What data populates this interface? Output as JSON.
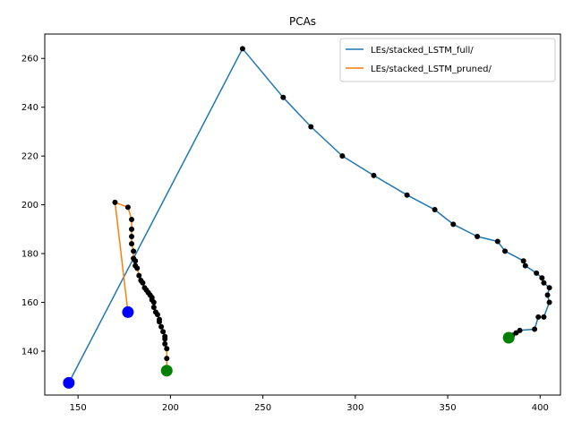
{
  "chart_data": {
    "type": "line",
    "title": "PCAs",
    "xlabel": "",
    "ylabel": "",
    "xlim": [
      132,
      411
    ],
    "ylim": [
      122,
      270
    ],
    "xticks": [
      150,
      200,
      250,
      300,
      350,
      400
    ],
    "yticks": [
      140,
      160,
      180,
      200,
      220,
      240,
      260
    ],
    "grid": false,
    "legend_position": "top-right",
    "start_marker_color": "#0000ff",
    "end_marker_color": "#008000",
    "point_marker_color": "#000000",
    "series": [
      {
        "name": "LEs/stacked_LSTM_full/",
        "color": "#1f77b4",
        "x": [
          145,
          239,
          261,
          276,
          293,
          310,
          328,
          343,
          353,
          366,
          377,
          381,
          391,
          392,
          398,
          401,
          402,
          405,
          404,
          405,
          402,
          399,
          397,
          389,
          387,
          385,
          383
        ],
        "y": [
          127,
          264,
          244,
          232,
          220,
          212,
          204,
          198,
          192,
          187,
          185,
          181,
          177,
          175,
          172,
          170,
          168,
          166,
          163,
          160,
          154,
          154,
          149,
          148.5,
          147.5,
          146.5,
          145.5
        ]
      },
      {
        "name": "LEs/stacked_LSTM_pruned/",
        "color": "#ff7f0e",
        "x": [
          177,
          170,
          177,
          179,
          179,
          179,
          179,
          180,
          180,
          181,
          181,
          182,
          183,
          184,
          185,
          186,
          187,
          188,
          189,
          190,
          190,
          191,
          191,
          192,
          193,
          194,
          194,
          195,
          196,
          197,
          197,
          197,
          198,
          198,
          198
        ],
        "y": [
          156,
          201,
          199,
          194,
          190,
          187,
          184,
          181,
          178,
          177,
          175,
          174,
          171,
          169,
          168,
          166,
          165,
          164,
          163,
          162,
          161,
          160,
          158,
          156,
          155,
          153,
          152,
          150,
          148,
          146,
          145,
          143,
          141,
          137,
          132
        ]
      }
    ]
  }
}
